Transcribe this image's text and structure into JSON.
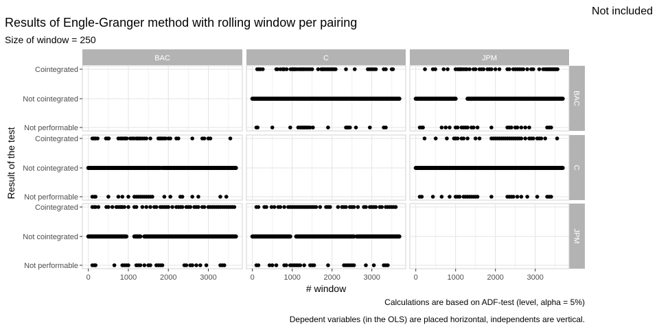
{
  "chart_data": {
    "type": "scatter",
    "title": "Results of Engle-Granger method with rolling window per pairing",
    "subtitle": "Size of window = 250",
    "xlabel": "# window",
    "ylabel": "Result of the test",
    "corner_text": "Not included",
    "captions": [
      "Calculations are based on ADF-test (level, alpha = 5%)",
      "Depedent variables (in the OLS) are placed horizontal, independents are vertical."
    ],
    "facet_columns": [
      "BAC",
      "C",
      "JPM"
    ],
    "facet_rows": [
      "BAC",
      "C",
      "JPM"
    ],
    "y_categories": [
      "Cointegrated",
      "Not cointegrated",
      "Not performable"
    ],
    "x_ticks": [
      0,
      1000,
      2000,
      3000
    ],
    "xlim": [
      -150,
      3850
    ],
    "grid": true,
    "panels": [
      {
        "row": "BAC",
        "col": "BAC",
        "empty": true
      },
      {
        "row": "BAC",
        "col": "C",
        "segments": [
          [
            0,
            3690
          ]
        ],
        "points": {
          "Cointegrated": [
            120,
            160,
            200,
            260,
            600,
            630,
            700,
            760,
            780,
            800,
            860,
            960,
            1000,
            1020,
            1050,
            1070,
            1100,
            1150,
            1200,
            1230,
            1270,
            1300,
            1350,
            1400,
            1450,
            1500,
            1650,
            1730,
            1750,
            1770,
            1800,
            1830,
            1870,
            1900,
            1930,
            1970,
            2000,
            2030,
            2060,
            2090,
            2350,
            2570,
            2900,
            2950,
            3000,
            3050,
            3100,
            3300,
            3350,
            3500,
            3530
          ],
          "Not performable": [
            100,
            130,
            500,
            950,
            1150,
            1200,
            1230,
            1270,
            1300,
            1330,
            1370,
            1400,
            1450,
            1520,
            1900,
            2350,
            2380,
            2400,
            2450,
            2600,
            2950,
            3300,
            3350
          ]
        }
      },
      {
        "row": "BAC",
        "col": "JPM",
        "segments": [
          [
            0,
            1000
          ],
          [
            1300,
            3690
          ]
        ],
        "points": {
          "Cointegrated": [
            230,
            430,
            490,
            700,
            800,
            1000,
            1050,
            1080,
            1100,
            1130,
            1150,
            1200,
            1250,
            1280,
            1350,
            1450,
            1500,
            1600,
            1650,
            1700,
            1800,
            1850,
            1900,
            2000,
            2100,
            2300,
            2350,
            2450,
            2500,
            2550,
            2600,
            2650,
            2700,
            2800,
            2900,
            2950,
            3100,
            3200,
            3250,
            3280,
            3300,
            3330,
            3350,
            3380,
            3400,
            3430,
            3450,
            3480,
            3500,
            3530,
            3560
          ],
          "Not performable": [
            100,
            150,
            180,
            650,
            750,
            850,
            1000,
            1050,
            1150,
            1200,
            1250,
            1300,
            1400,
            1450,
            1550,
            1900,
            2300,
            2350,
            2400,
            2500,
            2550,
            2650,
            2750,
            2850,
            3300,
            3350,
            3400
          ]
        }
      },
      {
        "row": "C",
        "col": "BAC",
        "segments": [
          [
            0,
            1800
          ],
          [
            1850,
            3690
          ]
        ],
        "points": {
          "Cointegrated": [
            100,
            130,
            160,
            180,
            230,
            440,
            480,
            510,
            750,
            800,
            830,
            860,
            900,
            930,
            960,
            1050,
            1100,
            1140,
            1200,
            1230,
            1270,
            1300,
            1350,
            1400,
            1450,
            1550,
            1750,
            1780,
            1800,
            1830,
            1860,
            1900,
            1930,
            2000,
            2050,
            2200,
            2250,
            2600,
            2850,
            2900,
            3000,
            3050,
            3550
          ],
          "Not performable": [
            100,
            150,
            180,
            500,
            750,
            850,
            1000,
            1150,
            1200,
            1250,
            1300,
            1350,
            1400,
            1450,
            1500,
            1550,
            1600,
            1900,
            2050,
            2300,
            2350,
            2600,
            2750,
            3300,
            3450
          ]
        }
      },
      {
        "row": "C",
        "col": "C",
        "empty": true
      },
      {
        "row": "C",
        "col": "JPM",
        "segments": [
          [
            0,
            3690
          ]
        ],
        "points": {
          "Cointegrated": [
            220,
            500,
            780,
            960,
            1000,
            1050,
            1150,
            1200,
            1300,
            1500,
            1600,
            1900,
            1950,
            2000,
            2050,
            2100,
            2150,
            2200,
            2250,
            2300,
            2350,
            2400,
            2450,
            2500,
            2550,
            2600,
            2650,
            2750,
            2850,
            2900,
            2950,
            3050,
            3100,
            3150,
            3250,
            3550
          ],
          "Not performable": [
            100,
            150,
            430,
            650,
            850,
            1000,
            1050,
            1100,
            1200,
            1250,
            1300,
            1350,
            1400,
            1450,
            1500,
            1550,
            1900,
            2300,
            2350,
            2400,
            2450,
            2550,
            2650,
            2800,
            3050,
            3300,
            3350,
            3400
          ]
        }
      },
      {
        "row": "JPM",
        "col": "BAC",
        "segments": [
          [
            0,
            950
          ],
          [
            1150,
            1300
          ],
          [
            1400,
            3690
          ]
        ],
        "points": {
          "Cointegrated": [
            100,
            150,
            180,
            250,
            450,
            500,
            600,
            700,
            750,
            800,
            830,
            850,
            900,
            1000,
            1150,
            1200,
            1350,
            1450,
            1550,
            1650,
            1700,
            1800,
            1850,
            1900,
            1950,
            2000,
            2100,
            2200,
            2250,
            2300,
            2350,
            2450,
            2500,
            2550,
            2650,
            2700,
            2750,
            2850,
            2900,
            3000,
            3050,
            3100,
            3150,
            3200,
            3250,
            3300,
            3350,
            3400,
            3450,
            3500,
            3550,
            3600,
            3650
          ],
          "Not performable": [
            100,
            150,
            180,
            650,
            850,
            900,
            950,
            1000,
            1200,
            1250,
            1300,
            1400,
            1500,
            1550,
            1700,
            1750,
            1800,
            1850,
            2400,
            2450,
            2550,
            2600,
            2700,
            2800,
            2950,
            3300,
            3350,
            3400
          ]
        }
      },
      {
        "row": "JPM",
        "col": "C",
        "segments": [
          [
            0,
            950
          ],
          [
            1100,
            2550
          ],
          [
            2620,
            3690
          ]
        ],
        "points": {
          "Cointegrated": [
            100,
            150,
            300,
            350,
            480,
            550,
            650,
            700,
            800,
            900,
            950,
            1000,
            1050,
            1100,
            1150,
            1200,
            1250,
            1300,
            1350,
            1400,
            1450,
            1500,
            1550,
            1600,
            1700,
            1850,
            1900,
            1950,
            2150,
            2250,
            2300,
            2350,
            2450,
            2500,
            2550,
            2650,
            2800,
            2850,
            2950,
            3000,
            3050,
            3100,
            3200,
            3250,
            3350,
            3400,
            3450,
            3500,
            3550,
            3600
          ],
          "Not performable": [
            100,
            150,
            430,
            500,
            600,
            800,
            850,
            950,
            1000,
            1050,
            1100,
            1150,
            1200,
            1300,
            1450,
            1500,
            1550,
            1900,
            2300,
            2350,
            2400,
            2450,
            2500,
            2550,
            2850,
            3050,
            3300,
            3350,
            3400
          ]
        }
      },
      {
        "row": "JPM",
        "col": "JPM",
        "empty": true
      }
    ]
  }
}
